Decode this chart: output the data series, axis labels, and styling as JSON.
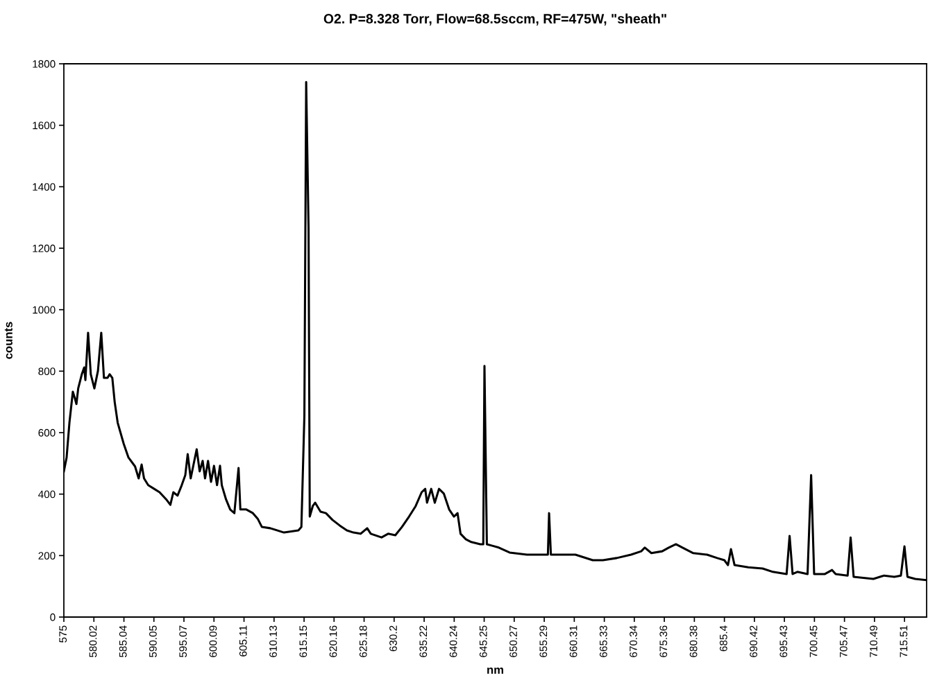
{
  "chart_data": {
    "type": "line",
    "title": "O2. P=8.328 Torr, Flow=68.5sccm, RF=475W, \"sheath\"",
    "xlabel": "nm",
    "ylabel": "counts",
    "series": [
      {
        "color": "#000000",
        "x": [
          575,
          575.46,
          575.93,
          576.5,
          576.85,
          577.1,
          577.4,
          578.0,
          578.4,
          578.6,
          579.05,
          579.5,
          580.1,
          580.7,
          581.25,
          581.7,
          582.3,
          582.65,
          583.1,
          583.5,
          584.0,
          585.0,
          585.8,
          586.9,
          587.5,
          588.0,
          588.4,
          589.1,
          590.1,
          591.0,
          592.1,
          592.8,
          593.3,
          594.0,
          594.7,
          595.3,
          595.7,
          596.2,
          596.8,
          597.2,
          597.7,
          598.2,
          598.6,
          599.1,
          599.6,
          600.1,
          600.6,
          601.1,
          601.4,
          602.1,
          602.8,
          603.5,
          604.2,
          604.5,
          605.5,
          606.6,
          607.4,
          608.1,
          609.5,
          611.8,
          614.2,
          614.7,
          615.2,
          615.5,
          615.9,
          616.1,
          616.6,
          617.0,
          617.9,
          618.8,
          619.9,
          621.1,
          622.3,
          623.4,
          624.6,
          625.7,
          626.3,
          628.1,
          629.2,
          630.4,
          631.5,
          632.7,
          633.8,
          634.8,
          635.4,
          635.7,
          636.4,
          637.0,
          637.7,
          638.5,
          639.4,
          640.2,
          640.8,
          641.3,
          642.2,
          643.1,
          644.6,
          645.1,
          645.3,
          645.7,
          646.6,
          647.7,
          649.5,
          652.4,
          655.9,
          656.1,
          656.4,
          659.3,
          660.5,
          663.4,
          665.1,
          667.4,
          669.8,
          671.5,
          672.1,
          673.2,
          675.0,
          676.1,
          677.3,
          678.4,
          680.2,
          682.5,
          684.2,
          685.4,
          686.0,
          686.5,
          687.1,
          689.4,
          691.8,
          693.5,
          695.8,
          696.3,
          696.8,
          697.6,
          699.3,
          699.9,
          700.4,
          702.2,
          703.4,
          704.0,
          706.0,
          706.5,
          707.0,
          710.3,
          712.1,
          713.8,
          714.9,
          715.5,
          716.0,
          717.3,
          719.2
        ],
        "values": [
          474,
          519,
          632,
          733,
          711,
          693,
          744,
          790,
          812,
          771,
          925,
          790,
          744,
          801,
          925,
          778,
          778,
          790,
          778,
          699,
          632,
          564,
          519,
          490,
          451,
          496,
          451,
          429,
          417,
          406,
          383,
          365,
          406,
          395,
          429,
          462,
          530,
          451,
          508,
          546,
          474,
          508,
          451,
          508,
          440,
          492,
          429,
          492,
          429,
          383,
          350,
          338,
          485,
          350,
          350,
          338,
          320,
          293,
          289,
          275,
          282,
          293,
          654,
          1741,
          1263,
          327,
          361,
          372,
          343,
          338,
          316,
          298,
          282,
          275,
          271,
          289,
          271,
          259,
          271,
          266,
          293,
          327,
          361,
          406,
          417,
          372,
          417,
          372,
          417,
          402,
          350,
          327,
          338,
          271,
          253,
          244,
          237,
          237,
          817,
          237,
          232,
          226,
          210,
          203,
          203,
          338,
          203,
          203,
          203,
          185,
          185,
          192,
          203,
          214,
          226,
          208,
          214,
          226,
          237,
          226,
          208,
          203,
          192,
          185,
          169,
          221,
          169,
          162,
          158,
          147,
          140,
          264,
          140,
          147,
          140,
          462,
          140,
          140,
          153,
          140,
          135,
          259,
          131,
          124,
          135,
          131,
          135,
          230,
          131,
          124,
          120
        ]
      }
    ],
    "xlim": [
      575,
      719.2
    ],
    "xticks": [
      575,
      580.02,
      585.04,
      590.05,
      595.07,
      600.09,
      605.11,
      610.13,
      615.15,
      620.16,
      625.18,
      630.2,
      635.22,
      640.24,
      645.25,
      650.27,
      655.29,
      660.31,
      665.33,
      670.34,
      675.36,
      680.38,
      685.4,
      690.42,
      695.43,
      700.45,
      705.47,
      710.49,
      715.51
    ],
    "ylim": [
      0,
      1800
    ],
    "yticks": [
      0,
      200,
      400,
      600,
      800,
      1000,
      1200,
      1400,
      1600,
      1800
    ],
    "grid": false,
    "marker": "none",
    "line_style": "solid"
  }
}
